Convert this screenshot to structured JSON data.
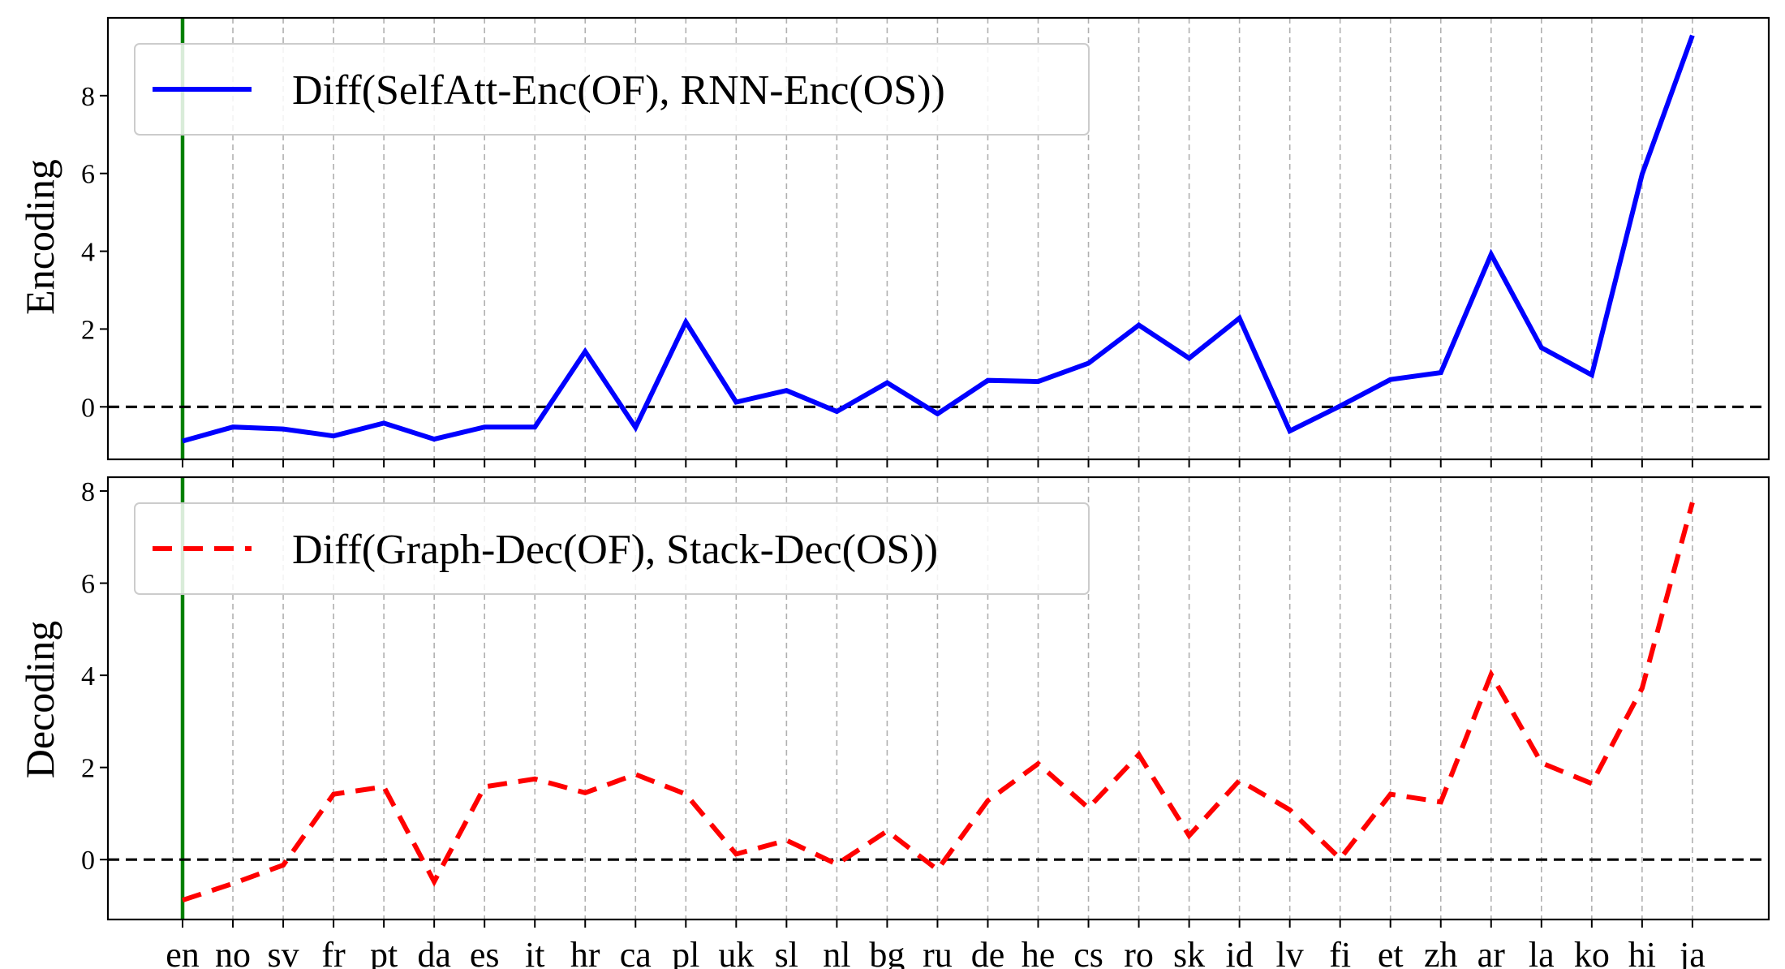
{
  "chart_data": [
    {
      "type": "line",
      "ylabel": "Encoding",
      "categories": [
        "en",
        "no",
        "sv",
        "fr",
        "pt",
        "da",
        "es",
        "it",
        "hr",
        "ca",
        "pl",
        "uk",
        "sl",
        "nl",
        "bg",
        "ru",
        "de",
        "he",
        "cs",
        "ro",
        "sk",
        "id",
        "lv",
        "fi",
        "et",
        "zh",
        "ar",
        "la",
        "ko",
        "hi",
        "ja"
      ],
      "series": [
        {
          "name": "Diff(SelfAtt-Enc(OF), RNN-Enc(OS))",
          "values": [
            -0.88,
            -0.52,
            -0.57,
            -0.75,
            -0.42,
            -0.83,
            -0.52,
            -0.52,
            1.42,
            -0.53,
            2.18,
            0.12,
            0.42,
            -0.12,
            0.62,
            -0.18,
            0.68,
            0.65,
            1.12,
            2.1,
            1.25,
            2.28,
            -0.62,
            0.02,
            0.7,
            0.88,
            3.92,
            1.52,
            0.82,
            5.98,
            9.55
          ],
          "color": "#0000ff",
          "style": "solid"
        }
      ],
      "yticks": [
        0,
        2,
        4,
        6,
        8
      ],
      "ylim": [
        -1.35,
        10.0
      ],
      "reference_hline": 0,
      "highlight_vline_category": "en",
      "highlight_color": "#008000",
      "grid": "vertical dashed",
      "legend_position": "upper-left"
    },
    {
      "type": "line",
      "ylabel": "Decoding",
      "categories": [
        "en",
        "no",
        "sv",
        "fr",
        "pt",
        "da",
        "es",
        "it",
        "hr",
        "ca",
        "pl",
        "uk",
        "sl",
        "nl",
        "bg",
        "ru",
        "de",
        "he",
        "cs",
        "ro",
        "sk",
        "id",
        "lv",
        "fi",
        "et",
        "zh",
        "ar",
        "la",
        "ko",
        "hi",
        "ja"
      ],
      "series": [
        {
          "name": "Diff(Graph-Dec(OF), Stack-Dec(OS))",
          "values": [
            -0.88,
            -0.52,
            -0.12,
            1.42,
            1.58,
            -0.48,
            1.58,
            1.75,
            1.45,
            1.85,
            1.42,
            0.12,
            0.42,
            -0.1,
            0.62,
            -0.22,
            1.28,
            2.08,
            1.12,
            2.28,
            0.52,
            1.72,
            1.08,
            0.02,
            1.42,
            1.25,
            4.02,
            2.1,
            1.65,
            3.72,
            7.75
          ],
          "color": "#ff0000",
          "style": "dashed"
        }
      ],
      "yticks": [
        0,
        2,
        4,
        6,
        8
      ],
      "ylim": [
        -1.3,
        8.3
      ],
      "reference_hline": 0,
      "highlight_vline_category": "en",
      "highlight_color": "#008000",
      "grid": "vertical dashed",
      "legend_position": "upper-left"
    }
  ]
}
